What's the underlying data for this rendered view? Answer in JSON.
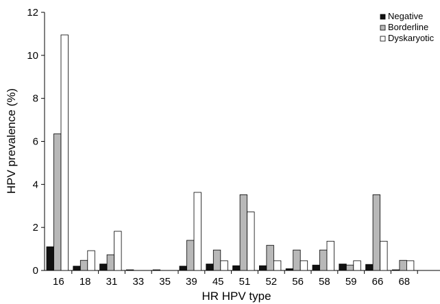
{
  "chart_data": {
    "type": "bar",
    "xlabel": "HR HPV type",
    "ylabel": "HPV prevalence (%)",
    "ylim": [
      0,
      12
    ],
    "yticks": [
      0,
      2,
      4,
      6,
      8,
      10,
      12
    ],
    "grid": false,
    "legend_position": "top-right",
    "categories": [
      "16",
      "18",
      "31",
      "33",
      "35",
      "39",
      "45",
      "51",
      "52",
      "56",
      "58",
      "59",
      "66",
      "68"
    ],
    "series": [
      {
        "name": "Negative",
        "color": "#111111",
        "values": [
          1.1,
          0.2,
          0.3,
          0.03,
          0.03,
          0.2,
          0.3,
          0.22,
          0.22,
          0.08,
          0.25,
          0.3,
          0.28,
          0.03
        ]
      },
      {
        "name": "Borderline",
        "color": "#b8b8b8",
        "values": [
          6.35,
          0.47,
          0.73,
          0.0,
          0.0,
          1.4,
          0.95,
          3.52,
          1.17,
          0.95,
          0.95,
          0.25,
          3.52,
          0.47
        ]
      },
      {
        "name": "Dyskaryotic",
        "color": "#ffffff",
        "values": [
          10.95,
          0.92,
          1.82,
          0.0,
          0.0,
          3.63,
          0.45,
          2.72,
          0.45,
          0.45,
          1.36,
          0.45,
          1.36,
          0.45
        ]
      }
    ]
  }
}
